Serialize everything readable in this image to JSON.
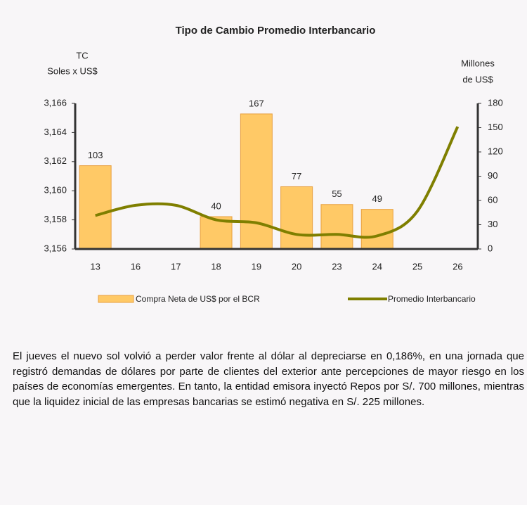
{
  "chart_data": {
    "type": "bar_line",
    "title": "Tipo de Cambio Promedio Interbancario",
    "ylabel": [
      "TC",
      "Soles x US$"
    ],
    "y2label": [
      "Millones",
      "de US$"
    ],
    "categories": [
      "13",
      "16",
      "17",
      "18",
      "19",
      "20",
      "23",
      "24",
      "25",
      "26"
    ],
    "series": [
      {
        "name": "Compra Neta de US$ por el BCR",
        "type": "bar",
        "axis": "y2",
        "color": "#ffc966",
        "values": [
          103,
          null,
          null,
          40,
          167,
          77,
          55,
          49,
          null,
          null
        ]
      },
      {
        "name": "Promedio Interbancario",
        "type": "line",
        "axis": "y",
        "color": "#7f7f00",
        "values": [
          3.1583,
          3.159,
          3.159,
          3.158,
          3.1578,
          3.157,
          3.157,
          3.1569,
          3.1586,
          3.1644
        ]
      }
    ],
    "ylim": [
      3.156,
      3.166
    ],
    "yticks": [
      {
        "value": 3.156,
        "label": "3,156"
      },
      {
        "value": 3.158,
        "label": "3,158"
      },
      {
        "value": 3.16,
        "label": "3,160"
      },
      {
        "value": 3.162,
        "label": "3,162"
      },
      {
        "value": 3.164,
        "label": "3,164"
      },
      {
        "value": 3.166,
        "label": "3,166"
      }
    ],
    "y2lim": [
      0,
      180
    ],
    "y2ticks": [
      0,
      30,
      60,
      90,
      120,
      150,
      180
    ]
  },
  "text": "El jueves el nuevo sol volvió a perder valor frente al dólar al depreciarse en 0,186%, en una jornada que registró demandas de dólares por parte de clientes del exterior ante percepciones de mayor riesgo en los países de economías emergentes. En tanto, la entidad emisora inyectó Repos por S/. 700 millones, mientras que la liquidez inicial de las empresas bancarias se estimó negativa en S/. 225 millones."
}
